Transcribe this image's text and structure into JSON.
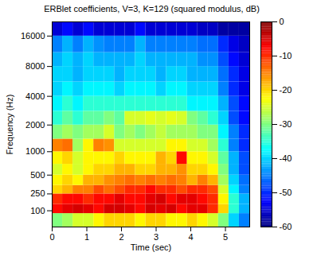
{
  "chart_data": {
    "type": "heatmap",
    "title": "ERBlet coefficients, V=3, K=129 (squared modulus, dB)",
    "x_label": "Time (sec)",
    "y_label": "Frequency (Hz)",
    "xlim": [
      0,
      5.7
    ],
    "xticks": [
      0,
      1,
      2,
      3,
      4,
      5
    ],
    "ylim": [
      0,
      22050
    ],
    "yticks": [
      100,
      250,
      500,
      1000,
      2000,
      4000,
      8000,
      16000
    ],
    "x_edges": [
      0,
      0.3,
      0.6,
      0.9,
      1.2,
      1.5,
      1.8,
      2.1,
      2.4,
      2.7,
      3.0,
      3.3,
      3.6,
      3.9,
      4.2,
      4.5,
      4.8,
      5.1,
      5.4,
      5.7
    ],
    "y_edges": [
      0,
      80,
      150,
      250,
      350,
      500,
      700,
      1000,
      1400,
      2000,
      2800,
      4000,
      5600,
      8000,
      11000,
      16000,
      22050
    ],
    "values": [
      [
        -30,
        -28,
        -25,
        -25,
        -22,
        -20,
        -20,
        -20,
        -22,
        -20,
        -20,
        -22,
        -22,
        -20,
        -22,
        -25,
        -30,
        -40,
        -45
      ],
      [
        -8,
        -6,
        -5,
        -6,
        -8,
        -5,
        -5,
        -6,
        -8,
        -5,
        -6,
        -5,
        -8,
        -6,
        -6,
        -10,
        -20,
        -35,
        -42
      ],
      [
        -10,
        -8,
        -8,
        -10,
        -8,
        -8,
        -6,
        -8,
        -8,
        -6,
        -5,
        -8,
        -6,
        -6,
        -8,
        -10,
        -22,
        -35,
        -42
      ],
      [
        -20,
        -18,
        -15,
        -15,
        -12,
        -14,
        -12,
        -10,
        -10,
        -8,
        -10,
        -10,
        -12,
        -10,
        -10,
        -12,
        -25,
        -38,
        -45
      ],
      [
        -22,
        -20,
        -22,
        -18,
        -18,
        -16,
        -15,
        -14,
        -15,
        -14,
        -15,
        -14,
        -15,
        -18,
        -15,
        -18,
        -28,
        -40,
        -46
      ],
      [
        -25,
        -22,
        -25,
        -22,
        -20,
        -20,
        -18,
        -18,
        -20,
        -20,
        -18,
        -18,
        -16,
        -20,
        -20,
        -22,
        -30,
        -42,
        -48
      ],
      [
        -22,
        -20,
        -25,
        -22,
        -22,
        -22,
        -20,
        -22,
        -22,
        -22,
        -18,
        -20,
        -8,
        -22,
        -22,
        -25,
        -32,
        -42,
        -48
      ],
      [
        -15,
        -14,
        -28,
        -22,
        -15,
        -16,
        -25,
        -25,
        -25,
        -25,
        -25,
        -22,
        -22,
        -25,
        -25,
        -28,
        -35,
        -45,
        -50
      ],
      [
        -30,
        -28,
        -30,
        -28,
        -28,
        -25,
        -30,
        -28,
        -30,
        -28,
        -26,
        -28,
        -28,
        -28,
        -30,
        -30,
        -38,
        -45,
        -50
      ],
      [
        -35,
        -32,
        -35,
        -32,
        -32,
        -30,
        -32,
        -25,
        -25,
        -24,
        -25,
        -24,
        -25,
        -30,
        -32,
        -35,
        -40,
        -48,
        -52
      ],
      [
        -38,
        -35,
        -38,
        -35,
        -35,
        -35,
        -35,
        -35,
        -35,
        -35,
        -35,
        -35,
        -35,
        -38,
        -38,
        -38,
        -42,
        -48,
        -52
      ],
      [
        -40,
        -38,
        -40,
        -38,
        -38,
        -38,
        -40,
        -38,
        -38,
        -38,
        -40,
        -38,
        -38,
        -40,
        -40,
        -40,
        -45,
        -50,
        -54
      ],
      [
        -40,
        -40,
        -42,
        -40,
        -40,
        -40,
        -42,
        -40,
        -40,
        -40,
        -42,
        -40,
        -40,
        -42,
        -42,
        -42,
        -46,
        -50,
        -54
      ],
      [
        -42,
        -40,
        -42,
        -40,
        -42,
        -42,
        -42,
        -42,
        -40,
        -42,
        -42,
        -42,
        -42,
        -42,
        -44,
        -44,
        -48,
        -52,
        -55
      ],
      [
        -45,
        -42,
        -45,
        -42,
        -44,
        -45,
        -45,
        -45,
        -42,
        -45,
        -45,
        -45,
        -45,
        -45,
        -46,
        -46,
        -50,
        -54,
        -56
      ],
      [
        -55,
        -52,
        -55,
        -52,
        -55,
        -55,
        -55,
        -55,
        -52,
        -55,
        -55,
        -55,
        -55,
        -55,
        -56,
        -56,
        -58,
        -58,
        -58
      ]
    ],
    "colorbar": {
      "range": [
        -60,
        0
      ],
      "ticks": [
        0,
        -10,
        -20,
        -30,
        -40,
        -50,
        -60
      ]
    }
  }
}
